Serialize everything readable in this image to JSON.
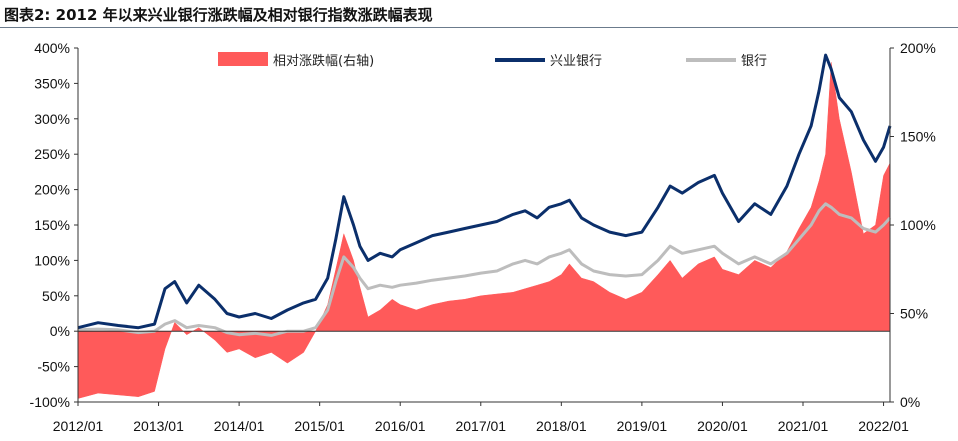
{
  "figure_title": "图表2:   2012 年以来兴业银行涨跌幅及相对银行指数涨跌幅表现",
  "colors": {
    "relative": "#ff5a5a",
    "cib": "#0b2f6b",
    "bank": "#bdbdbd",
    "axis": "#333333"
  },
  "chart_data": {
    "type": "line",
    "title": "2012 年以来兴业银行涨跌幅及相对银行指数涨跌幅表现",
    "x_tick_labels": [
      "2012/01",
      "2013/01",
      "2014/01",
      "2015/01",
      "2016/01",
      "2017/01",
      "2018/01",
      "2019/01",
      "2020/01",
      "2021/01",
      "2022/01"
    ],
    "x_range": [
      2012.0,
      2022.08
    ],
    "y_left": {
      "range": [
        -100,
        400
      ],
      "ticks": [
        "-100%",
        "-50%",
        "0%",
        "50%",
        "100%",
        "150%",
        "200%",
        "250%",
        "300%",
        "350%",
        "400%"
      ]
    },
    "y_right": {
      "range": [
        0,
        200
      ],
      "ticks": [
        "0%",
        "50%",
        "100%",
        "150%",
        "200%"
      ]
    },
    "legend": {
      "placement": "top"
    },
    "series": [
      {
        "name": "相对涨跌幅(右轴)",
        "kind": "area",
        "axis": "right",
        "color": "#ff5a5a",
        "x": [
          2012.0,
          2012.25,
          2012.5,
          2012.75,
          2012.95,
          2013.08,
          2013.2,
          2013.35,
          2013.5,
          2013.7,
          2013.85,
          2014.0,
          2014.2,
          2014.4,
          2014.6,
          2014.8,
          2014.95,
          2015.1,
          2015.2,
          2015.3,
          2015.42,
          2015.5,
          2015.6,
          2015.75,
          2015.9,
          2016.0,
          2016.2,
          2016.4,
          2016.6,
          2016.8,
          2017.0,
          2017.2,
          2017.4,
          2017.55,
          2017.7,
          2017.85,
          2018.0,
          2018.1,
          2018.25,
          2018.4,
          2018.6,
          2018.8,
          2019.0,
          2019.2,
          2019.35,
          2019.5,
          2019.7,
          2019.9,
          2020.0,
          2020.2,
          2020.4,
          2020.6,
          2020.8,
          2020.95,
          2021.1,
          2021.2,
          2021.28,
          2021.35,
          2021.45,
          2021.6,
          2021.75,
          2021.9,
          2022.0,
          2022.08
        ],
        "values": [
          2,
          5,
          4,
          3,
          6,
          30,
          45,
          38,
          42,
          35,
          28,
          30,
          25,
          28,
          22,
          28,
          40,
          55,
          75,
          95,
          80,
          65,
          48,
          52,
          58,
          55,
          52,
          55,
          57,
          58,
          60,
          61,
          62,
          64,
          66,
          68,
          72,
          78,
          70,
          68,
          62,
          58,
          62,
          72,
          80,
          70,
          78,
          82,
          75,
          72,
          80,
          76,
          85,
          98,
          110,
          125,
          140,
          192,
          160,
          130,
          95,
          100,
          128,
          135
        ]
      },
      {
        "name": "兴业银行",
        "kind": "line",
        "axis": "left",
        "color": "#0b2f6b",
        "x": [
          2012.0,
          2012.25,
          2012.5,
          2012.75,
          2012.95,
          2013.08,
          2013.2,
          2013.35,
          2013.5,
          2013.7,
          2013.85,
          2014.0,
          2014.2,
          2014.4,
          2014.6,
          2014.8,
          2014.95,
          2015.1,
          2015.2,
          2015.3,
          2015.42,
          2015.5,
          2015.6,
          2015.75,
          2015.9,
          2016.0,
          2016.2,
          2016.4,
          2016.6,
          2016.8,
          2017.0,
          2017.2,
          2017.4,
          2017.55,
          2017.7,
          2017.85,
          2018.0,
          2018.1,
          2018.25,
          2018.4,
          2018.6,
          2018.8,
          2019.0,
          2019.2,
          2019.35,
          2019.5,
          2019.7,
          2019.9,
          2020.0,
          2020.2,
          2020.4,
          2020.6,
          2020.8,
          2020.95,
          2021.1,
          2021.2,
          2021.28,
          2021.35,
          2021.45,
          2021.6,
          2021.75,
          2021.9,
          2022.0,
          2022.08
        ],
        "values": [
          5,
          12,
          8,
          5,
          10,
          60,
          70,
          40,
          65,
          45,
          25,
          20,
          25,
          18,
          30,
          40,
          45,
          75,
          130,
          190,
          150,
          120,
          100,
          110,
          105,
          115,
          125,
          135,
          140,
          145,
          150,
          155,
          165,
          170,
          160,
          175,
          180,
          185,
          160,
          150,
          140,
          135,
          140,
          175,
          205,
          195,
          210,
          220,
          195,
          155,
          180,
          165,
          205,
          250,
          290,
          340,
          390,
          370,
          330,
          310,
          270,
          240,
          260,
          290
        ]
      },
      {
        "name": "银行",
        "kind": "line",
        "axis": "left",
        "color": "#bdbdbd",
        "x": [
          2012.0,
          2012.25,
          2012.5,
          2012.75,
          2012.95,
          2013.08,
          2013.2,
          2013.35,
          2013.5,
          2013.7,
          2013.85,
          2014.0,
          2014.2,
          2014.4,
          2014.6,
          2014.8,
          2014.95,
          2015.1,
          2015.2,
          2015.3,
          2015.42,
          2015.5,
          2015.6,
          2015.75,
          2015.9,
          2016.0,
          2016.2,
          2016.4,
          2016.6,
          2016.8,
          2017.0,
          2017.2,
          2017.4,
          2017.55,
          2017.7,
          2017.85,
          2018.0,
          2018.1,
          2018.25,
          2018.4,
          2018.6,
          2018.8,
          2019.0,
          2019.2,
          2019.35,
          2019.5,
          2019.7,
          2019.9,
          2020.0,
          2020.2,
          2020.4,
          2020.6,
          2020.8,
          2020.95,
          2021.1,
          2021.2,
          2021.28,
          2021.35,
          2021.45,
          2021.6,
          2021.75,
          2021.9,
          2022.0,
          2022.08
        ],
        "values": [
          2,
          3,
          2,
          -2,
          0,
          10,
          15,
          5,
          8,
          5,
          -2,
          -5,
          -3,
          -6,
          0,
          0,
          5,
          30,
          70,
          105,
          90,
          75,
          60,
          65,
          62,
          65,
          68,
          72,
          75,
          78,
          82,
          85,
          95,
          100,
          95,
          105,
          110,
          115,
          95,
          85,
          80,
          78,
          80,
          100,
          120,
          110,
          115,
          120,
          110,
          95,
          105,
          95,
          110,
          130,
          150,
          170,
          180,
          175,
          165,
          160,
          145,
          140,
          150,
          160
        ]
      }
    ]
  }
}
